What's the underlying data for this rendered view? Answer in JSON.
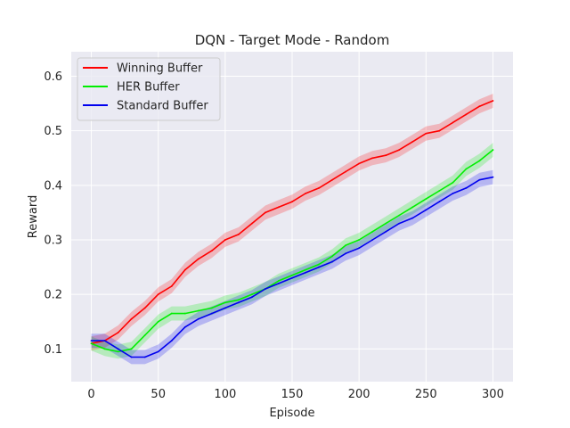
{
  "chart_data": {
    "type": "line",
    "title": "DQN - Target Mode - Random",
    "xlabel": "Episode",
    "ylabel": "Reward",
    "xlim": [
      -15,
      315
    ],
    "ylim": [
      0.04,
      0.645
    ],
    "xticks": [
      0,
      50,
      100,
      150,
      200,
      250,
      300
    ],
    "yticks": [
      0.1,
      0.2,
      0.3,
      0.4,
      0.5,
      0.6
    ],
    "grid": true,
    "legend_position": "top-left",
    "x": [
      0,
      10,
      20,
      30,
      40,
      50,
      60,
      70,
      80,
      90,
      100,
      110,
      120,
      130,
      140,
      150,
      160,
      170,
      180,
      190,
      200,
      210,
      220,
      230,
      240,
      250,
      260,
      270,
      280,
      290,
      300
    ],
    "series": [
      {
        "name": "Winning Buffer",
        "color": "#ff0000",
        "values": [
          0.11,
          0.115,
          0.13,
          0.155,
          0.175,
          0.2,
          0.215,
          0.245,
          0.265,
          0.28,
          0.3,
          0.31,
          0.33,
          0.35,
          0.36,
          0.37,
          0.385,
          0.395,
          0.41,
          0.425,
          0.44,
          0.45,
          0.455,
          0.465,
          0.48,
          0.495,
          0.5,
          0.515,
          0.53,
          0.545,
          0.555
        ],
        "band": 0.013
      },
      {
        "name": "HER Buffer",
        "color": "#00ee00",
        "values": [
          0.11,
          0.1,
          0.095,
          0.1,
          0.125,
          0.15,
          0.165,
          0.165,
          0.17,
          0.175,
          0.185,
          0.19,
          0.2,
          0.21,
          0.225,
          0.235,
          0.245,
          0.255,
          0.27,
          0.29,
          0.3,
          0.315,
          0.33,
          0.345,
          0.36,
          0.375,
          0.39,
          0.405,
          0.43,
          0.445,
          0.465
        ],
        "band": 0.013
      },
      {
        "name": "Standard Buffer",
        "color": "#0000ee",
        "values": [
          0.115,
          0.115,
          0.1,
          0.085,
          0.085,
          0.095,
          0.115,
          0.14,
          0.155,
          0.165,
          0.175,
          0.185,
          0.195,
          0.21,
          0.22,
          0.23,
          0.24,
          0.25,
          0.26,
          0.275,
          0.285,
          0.3,
          0.315,
          0.33,
          0.34,
          0.355,
          0.37,
          0.385,
          0.395,
          0.41,
          0.415
        ],
        "band": 0.013
      }
    ]
  }
}
